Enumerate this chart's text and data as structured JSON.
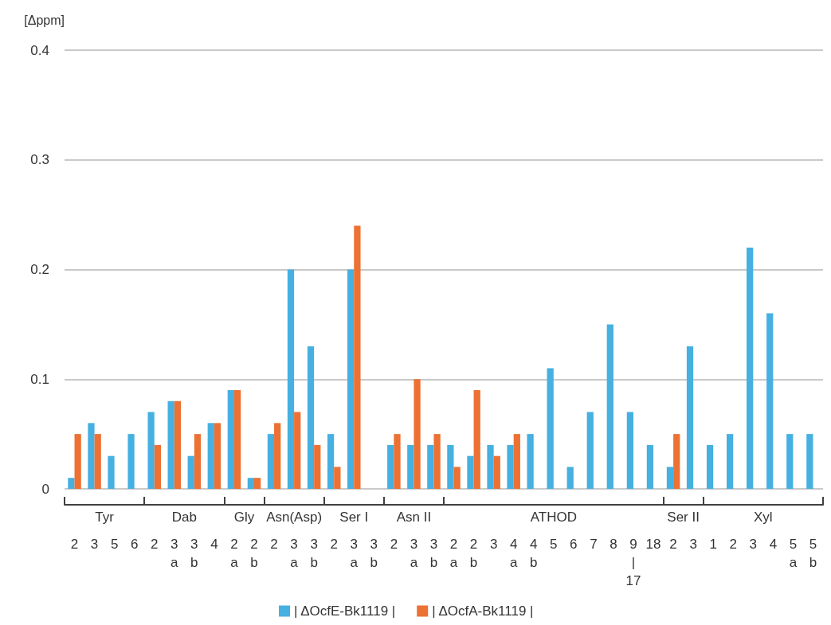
{
  "chart_data": {
    "type": "bar",
    "ylabel": "[Δppm]",
    "categories": [
      "2",
      "3",
      "5",
      "6",
      "2",
      "3\na",
      "3\nb",
      "4",
      "2\na",
      "2\nb",
      "2",
      "3\na",
      "3\nb",
      "2",
      "3\na",
      "3\nb",
      "2",
      "3\na",
      "3\nb",
      "2\na",
      "2\nb",
      "3",
      "4\na",
      "4\nb",
      "5",
      "6",
      "7",
      "8",
      "9\n|\n17",
      "18",
      "2",
      "3",
      "1",
      "2",
      "3",
      "4",
      "5\na",
      "5\nb"
    ],
    "series": [
      {
        "name": "| ΔOcfE-Bk1119 |",
        "color": "#46b0e1",
        "values": [
          0.01,
          0.06,
          0.03,
          0.05,
          0.07,
          0.08,
          0.03,
          0.06,
          0.09,
          0.01,
          0.05,
          0.2,
          0.13,
          0.05,
          0.2,
          null,
          0.04,
          0.04,
          0.04,
          0.04,
          0.03,
          0.04,
          0.04,
          0.05,
          0.11,
          0.02,
          0.07,
          0.15,
          0.07,
          0.04,
          0.02,
          0.13,
          0.04,
          0.05,
          0.22,
          0.16,
          0.05,
          0.05
        ]
      },
      {
        "name": "| ΔOcfA-Bk1119 |",
        "color": "#ec7133",
        "values": [
          0.05,
          0.05,
          null,
          null,
          0.04,
          0.08,
          0.05,
          0.06,
          0.09,
          0.01,
          0.06,
          0.07,
          0.04,
          0.02,
          0.24,
          null,
          0.05,
          0.1,
          0.05,
          0.02,
          0.09,
          0.03,
          0.05,
          null,
          null,
          null,
          null,
          null,
          null,
          null,
          0.05,
          null,
          null,
          null,
          null,
          null,
          null,
          null
        ]
      }
    ],
    "ylim": [
      0,
      0.4
    ],
    "yticks": [
      0,
      0.1,
      0.2,
      0.3,
      0.4
    ],
    "grid": "y",
    "legend": "bottom",
    "annotations": [
      "Tyr",
      "Dab",
      "Gly",
      "Asn(Asp)",
      "Ser I",
      "Asn II",
      "ATHOD",
      "Ser II",
      "Xyl"
    ]
  }
}
